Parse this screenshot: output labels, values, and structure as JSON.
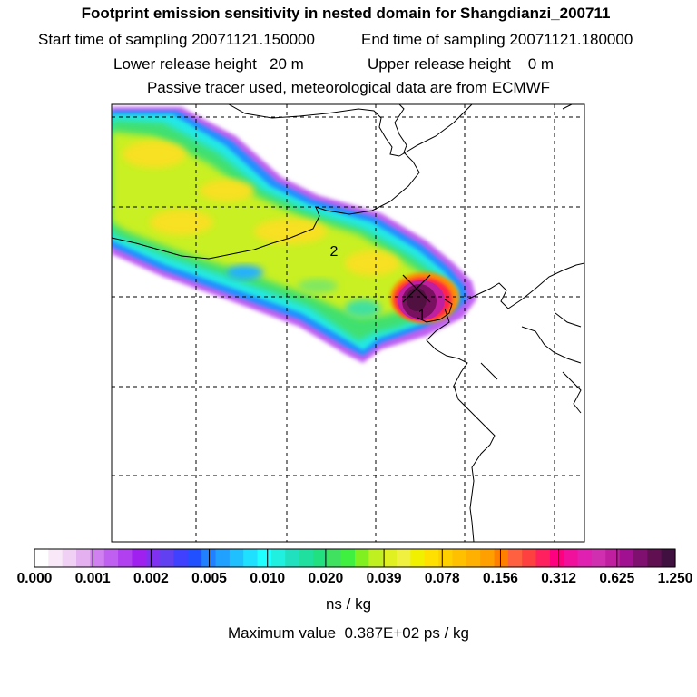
{
  "header": {
    "title": "Footprint emission sensitivity in nested domain for Shangdianzi_200711",
    "start_label": "Start time of sampling 20071121.150000",
    "end_label": "End time of sampling 20071121.180000",
    "lower_label": "Lower release height   20 m",
    "upper_label": "Upper release height    0 m",
    "tracer_note": "Passive tracer used, meteorological data are from ECMWF"
  },
  "map": {
    "labels": [
      "2",
      "1"
    ],
    "grid": true
  },
  "colorbar": {
    "ticks": [
      "0.000",
      "0.001",
      "0.002",
      "0.005",
      "0.010",
      "0.020",
      "0.039",
      "0.078",
      "0.156",
      "0.312",
      "0.625",
      "1.250"
    ],
    "colors": [
      "#ffffff",
      "#f8e8f8",
      "#f0d0f4",
      "#e4b0f0",
      "#d080f0",
      "#c060f0",
      "#b040f0",
      "#a020f0",
      "#8030f0",
      "#6040f0",
      "#4040ff",
      "#2050ff",
      "#2080ff",
      "#20a0ff",
      "#20c0ff",
      "#20e0ff",
      "#20ffff",
      "#20f0e0",
      "#20e0c0",
      "#20e0a0",
      "#20e080",
      "#40e060",
      "#40f040",
      "#80f020",
      "#c0f020",
      "#e0f020",
      "#f0f040",
      "#f0f000",
      "#ffe000",
      "#ffd000",
      "#ffc000",
      "#ffb000",
      "#ffa000",
      "#ff8000",
      "#ff6040",
      "#ff4040",
      "#ff2060",
      "#ff0080",
      "#f0109c",
      "#e020b0",
      "#d030b0",
      "#c020a0",
      "#a01090",
      "#801070",
      "#601050",
      "#401040"
    ],
    "units": "ns / kg",
    "max_label": "Maximum value  0.387E+02 ps / kg"
  }
}
